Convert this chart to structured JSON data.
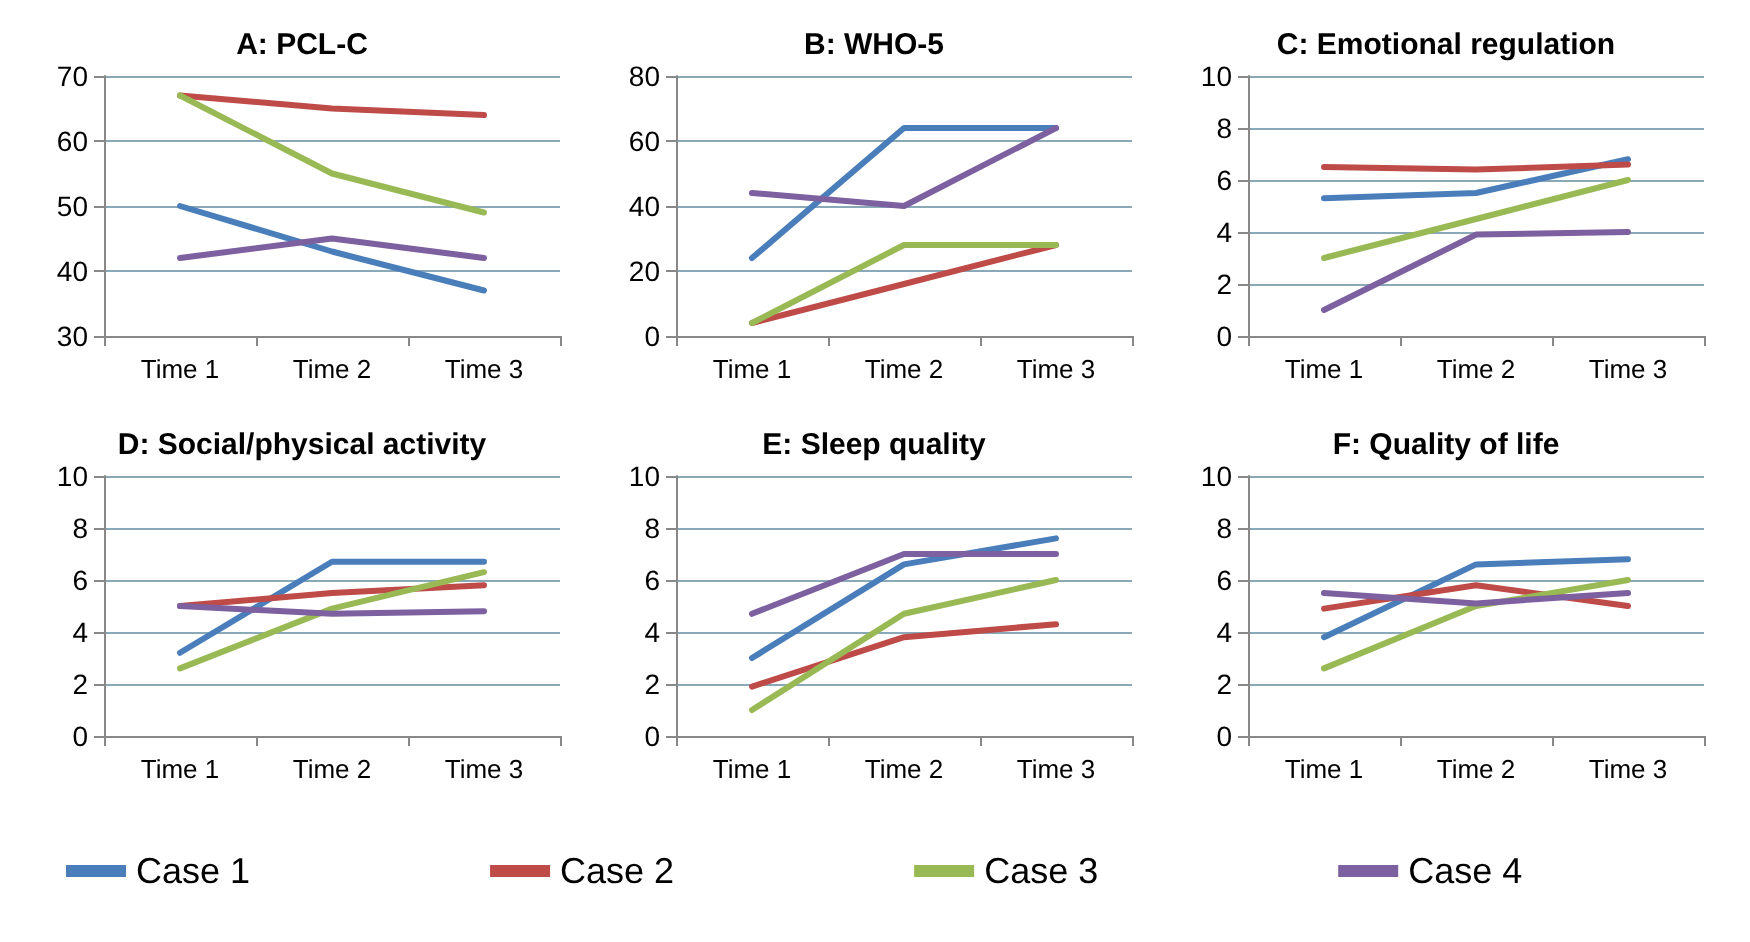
{
  "chart_data": [
    {
      "type": "line",
      "title": "A: PCL-C",
      "categories": [
        "Time 1",
        "Time 2",
        "Time 3"
      ],
      "ylim": [
        30,
        70
      ],
      "yticks": [
        30,
        40,
        50,
        60,
        70
      ],
      "grid": "y",
      "series": [
        {
          "color": "#4a7ebb",
          "values": [
            50,
            43,
            37
          ]
        },
        {
          "color": "#be4b48",
          "values": [
            67,
            65,
            64
          ]
        },
        {
          "color": "#98b954",
          "values": [
            67,
            55,
            49
          ]
        },
        {
          "color": "#7d60a0",
          "values": [
            42,
            45,
            42
          ]
        }
      ]
    },
    {
      "type": "line",
      "title": "B: WHO-5",
      "categories": [
        "Time 1",
        "Time 2",
        "Time 3"
      ],
      "ylim": [
        0,
        80
      ],
      "yticks": [
        0,
        20,
        40,
        60,
        80
      ],
      "grid": "y",
      "series": [
        {
          "color": "#4a7ebb",
          "values": [
            24,
            64,
            64
          ]
        },
        {
          "color": "#be4b48",
          "values": [
            4,
            16,
            28
          ]
        },
        {
          "color": "#98b954",
          "values": [
            4,
            28,
            28
          ]
        },
        {
          "color": "#7d60a0",
          "values": [
            44,
            40,
            64
          ]
        }
      ]
    },
    {
      "type": "line",
      "title": "C: Emotional regulation",
      "categories": [
        "Time 1",
        "Time 2",
        "Time 3"
      ],
      "ylim": [
        0,
        10
      ],
      "yticks": [
        0,
        2,
        4,
        6,
        8,
        10
      ],
      "grid": "y",
      "series": [
        {
          "color": "#4a7ebb",
          "values": [
            5.3,
            5.5,
            6.8
          ]
        },
        {
          "color": "#be4b48",
          "values": [
            6.5,
            6.4,
            6.6
          ]
        },
        {
          "color": "#98b954",
          "values": [
            3,
            4.5,
            6
          ]
        },
        {
          "color": "#7d60a0",
          "values": [
            1,
            3.9,
            4
          ]
        }
      ]
    },
    {
      "type": "line",
      "title": "D: Social/physical activity",
      "categories": [
        "Time 1",
        "Time 2",
        "Time 3"
      ],
      "ylim": [
        0,
        10
      ],
      "yticks": [
        0,
        2,
        4,
        6,
        8,
        10
      ],
      "grid": "y",
      "legend": "bottom",
      "series": [
        {
          "name": "Case 1",
          "color": "#4a7ebb",
          "values": [
            3.2,
            6.7,
            6.7
          ]
        },
        {
          "name": "Case 2",
          "color": "#be4b48",
          "values": [
            5,
            5.5,
            5.8
          ]
        },
        {
          "name": "Case 3",
          "color": "#98b954",
          "values": [
            2.6,
            4.9,
            6.3
          ]
        },
        {
          "name": "Case 4",
          "color": "#7d60a0",
          "values": [
            5,
            4.7,
            4.8
          ]
        }
      ]
    },
    {
      "type": "line",
      "title": "E: Sleep quality",
      "categories": [
        "Time 1",
        "Time 2",
        "Time 3"
      ],
      "ylim": [
        0,
        10
      ],
      "yticks": [
        0,
        2,
        4,
        6,
        8,
        10
      ],
      "grid": "y",
      "series": [
        {
          "color": "#4a7ebb",
          "values": [
            3,
            6.6,
            7.6
          ]
        },
        {
          "color": "#be4b48",
          "values": [
            1.9,
            3.8,
            4.3
          ]
        },
        {
          "color": "#98b954",
          "values": [
            1,
            4.7,
            6
          ]
        },
        {
          "color": "#7d60a0",
          "values": [
            4.7,
            7,
            7
          ]
        }
      ]
    },
    {
      "type": "line",
      "title": "F: Quality of life",
      "categories": [
        "Time 1",
        "Time 2",
        "Time 3"
      ],
      "ylim": [
        0,
        10
      ],
      "yticks": [
        0,
        2,
        4,
        6,
        8,
        10
      ],
      "grid": "y",
      "series": [
        {
          "color": "#4a7ebb",
          "values": [
            3.8,
            6.6,
            6.8
          ]
        },
        {
          "color": "#be4b48",
          "values": [
            4.9,
            5.8,
            5
          ]
        },
        {
          "color": "#98b954",
          "values": [
            2.6,
            5,
            6
          ]
        },
        {
          "color": "#7d60a0",
          "values": [
            5.5,
            5.1,
            5.5
          ]
        }
      ]
    }
  ]
}
